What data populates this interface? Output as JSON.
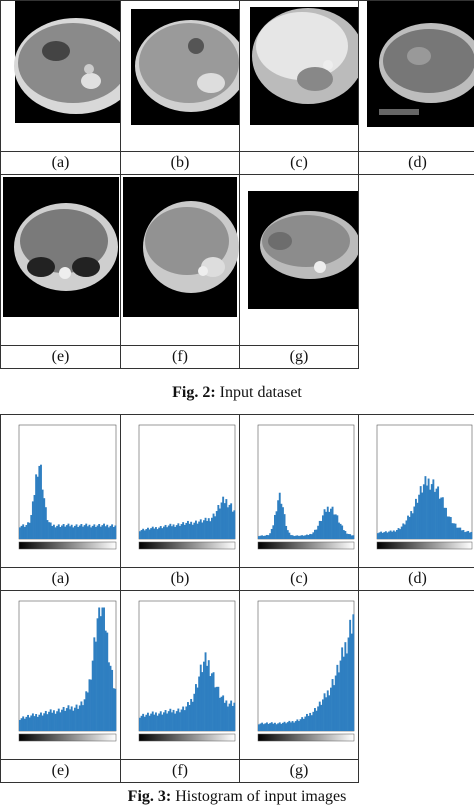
{
  "figure2": {
    "labels": [
      "(a)",
      "(b)",
      "(c)",
      "(d)",
      "(e)",
      "(f)",
      "(g)"
    ],
    "caption_bold": "Fig. 2:",
    "caption_text": " Input dataset"
  },
  "figure3": {
    "labels": [
      "(a)",
      "(b)",
      "(c)",
      "(d)",
      "(e)",
      "(f)",
      "(g)"
    ],
    "caption_bold": "Fig. 3:",
    "caption_text": " Histogram of input images"
  },
  "colors": {
    "hist_fill": "#2f7fc1",
    "ct_bg": "#000000"
  }
}
